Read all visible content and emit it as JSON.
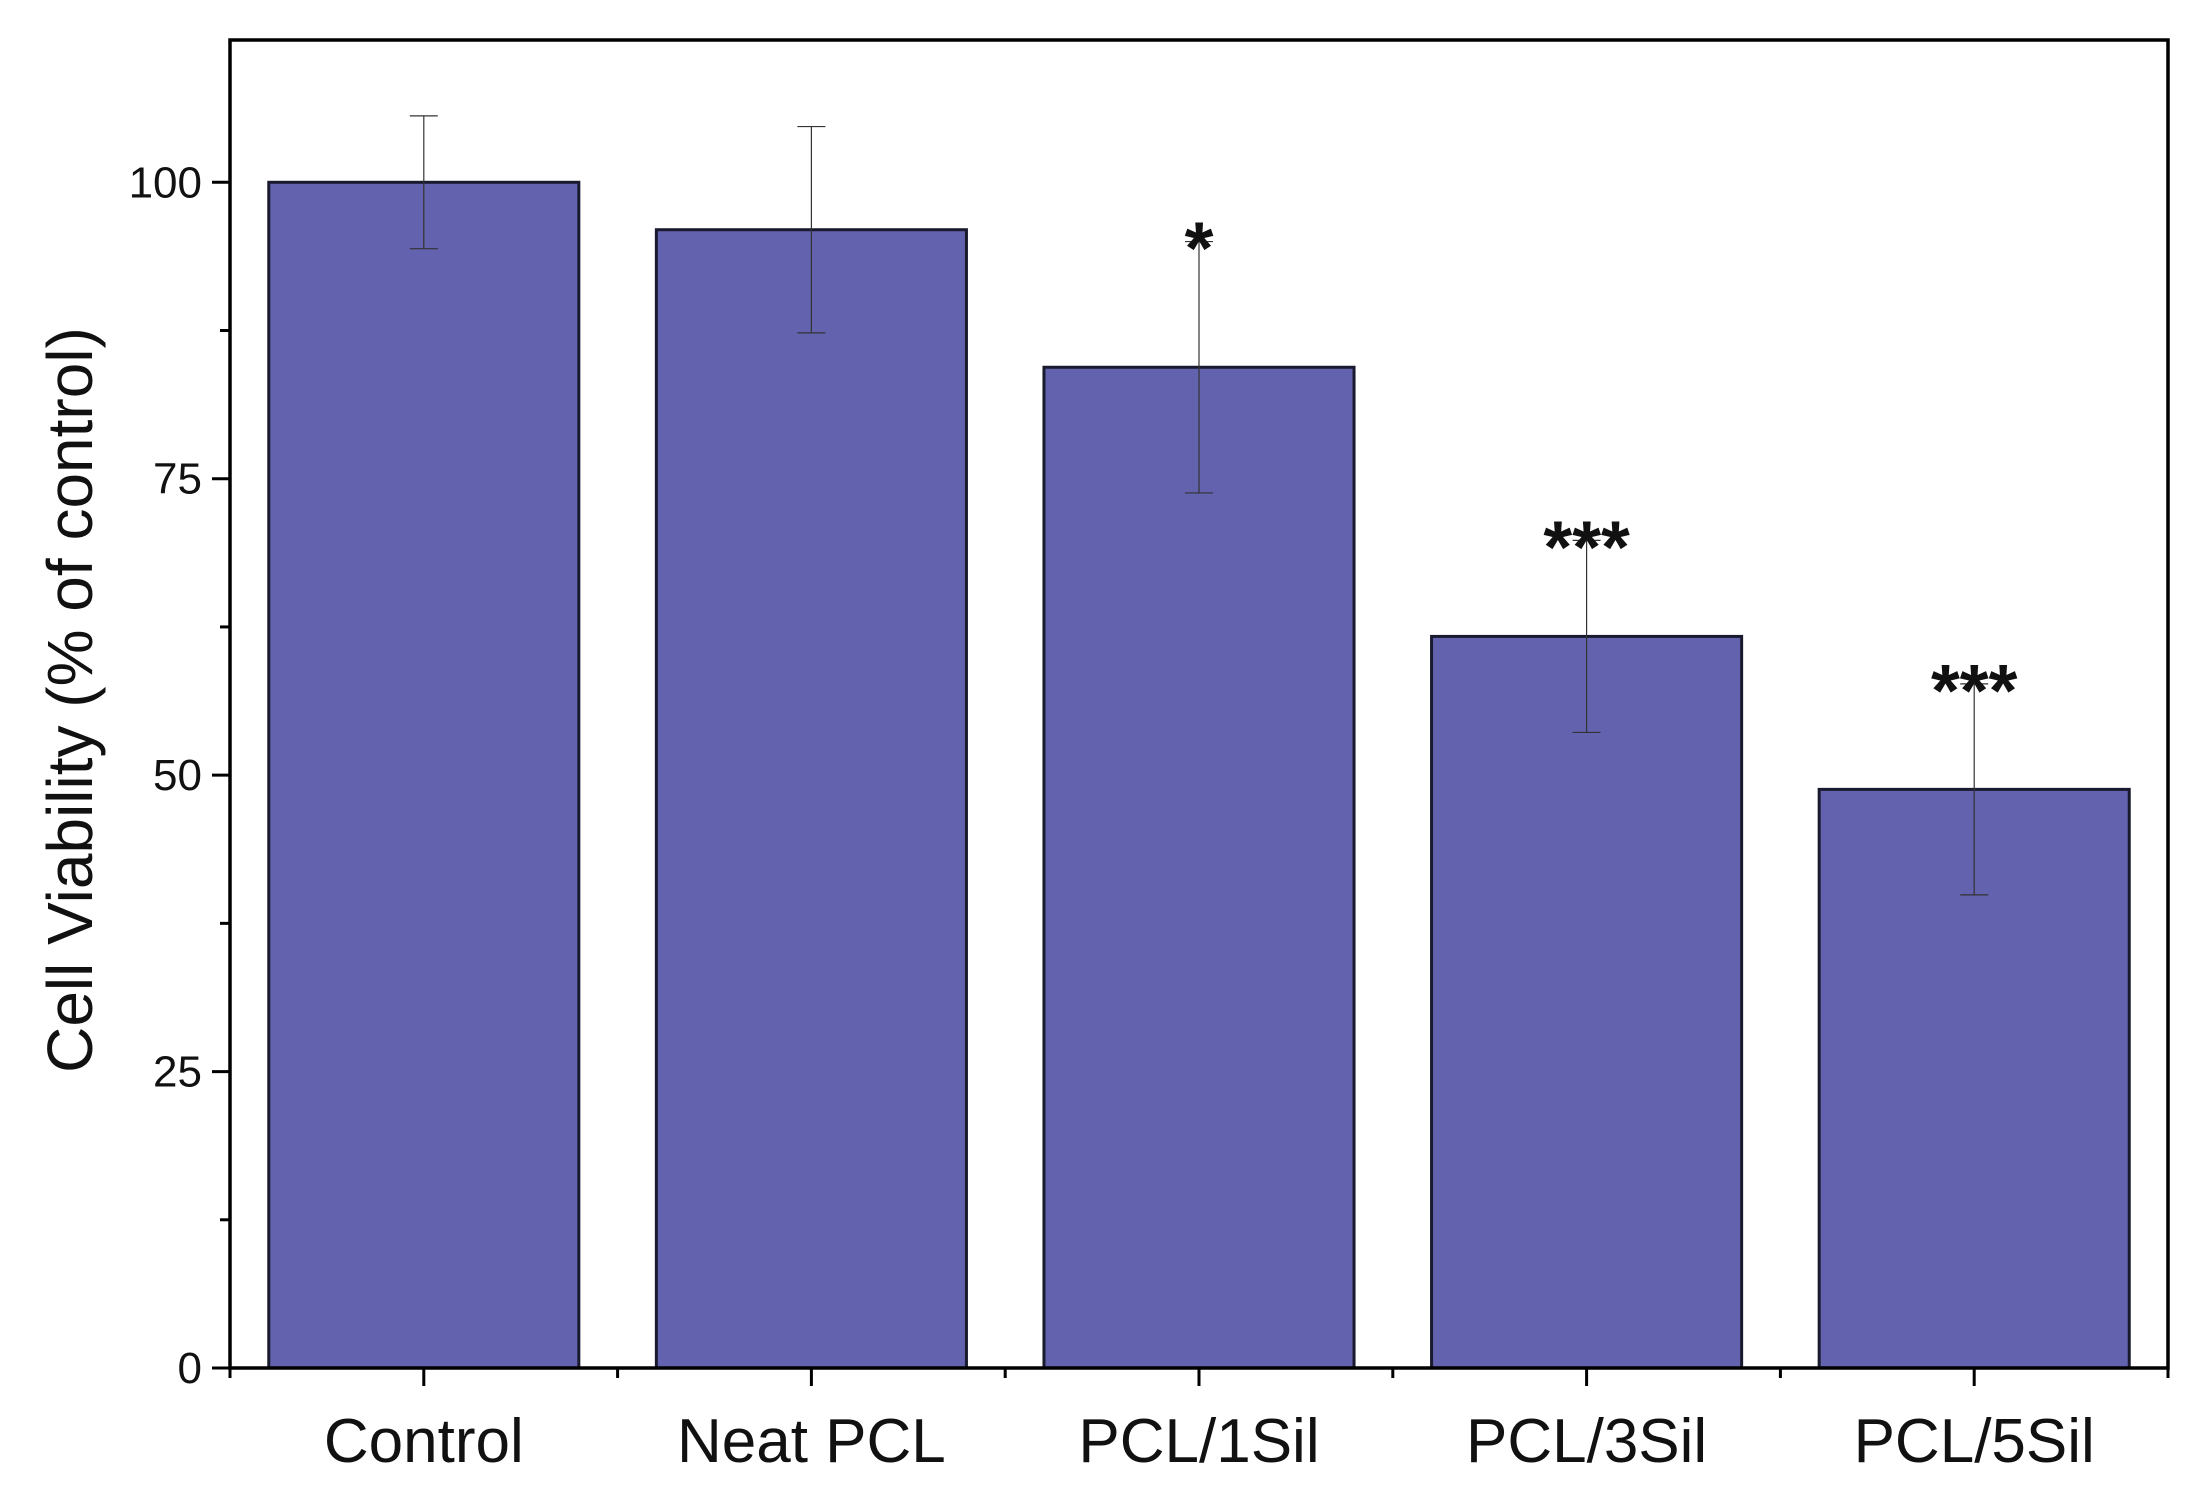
{
  "chart_data": {
    "type": "bar",
    "title": "",
    "xlabel": "",
    "ylabel": "Cell Viability (% of control)",
    "ylim": [
      0,
      112
    ],
    "yticks": [
      0,
      25,
      50,
      75,
      100
    ],
    "y_minor_ticks": [
      12.5,
      37.5,
      62.5,
      87.5,
      112.5
    ],
    "grid": false,
    "categories": [
      "Control",
      "Neat PCL",
      "PCL/1Sil",
      "PCL/3Sil",
      "PCL/5Sil"
    ],
    "values": [
      100,
      96,
      84.4,
      61.7,
      48.8
    ],
    "errors": [
      5.6,
      8.7,
      10.6,
      8.1,
      8.9
    ],
    "significance": [
      "",
      "",
      "*",
      "***",
      "***"
    ],
    "bar_color": "#6262ae",
    "bar_edge_color": "#1a1a2e"
  }
}
